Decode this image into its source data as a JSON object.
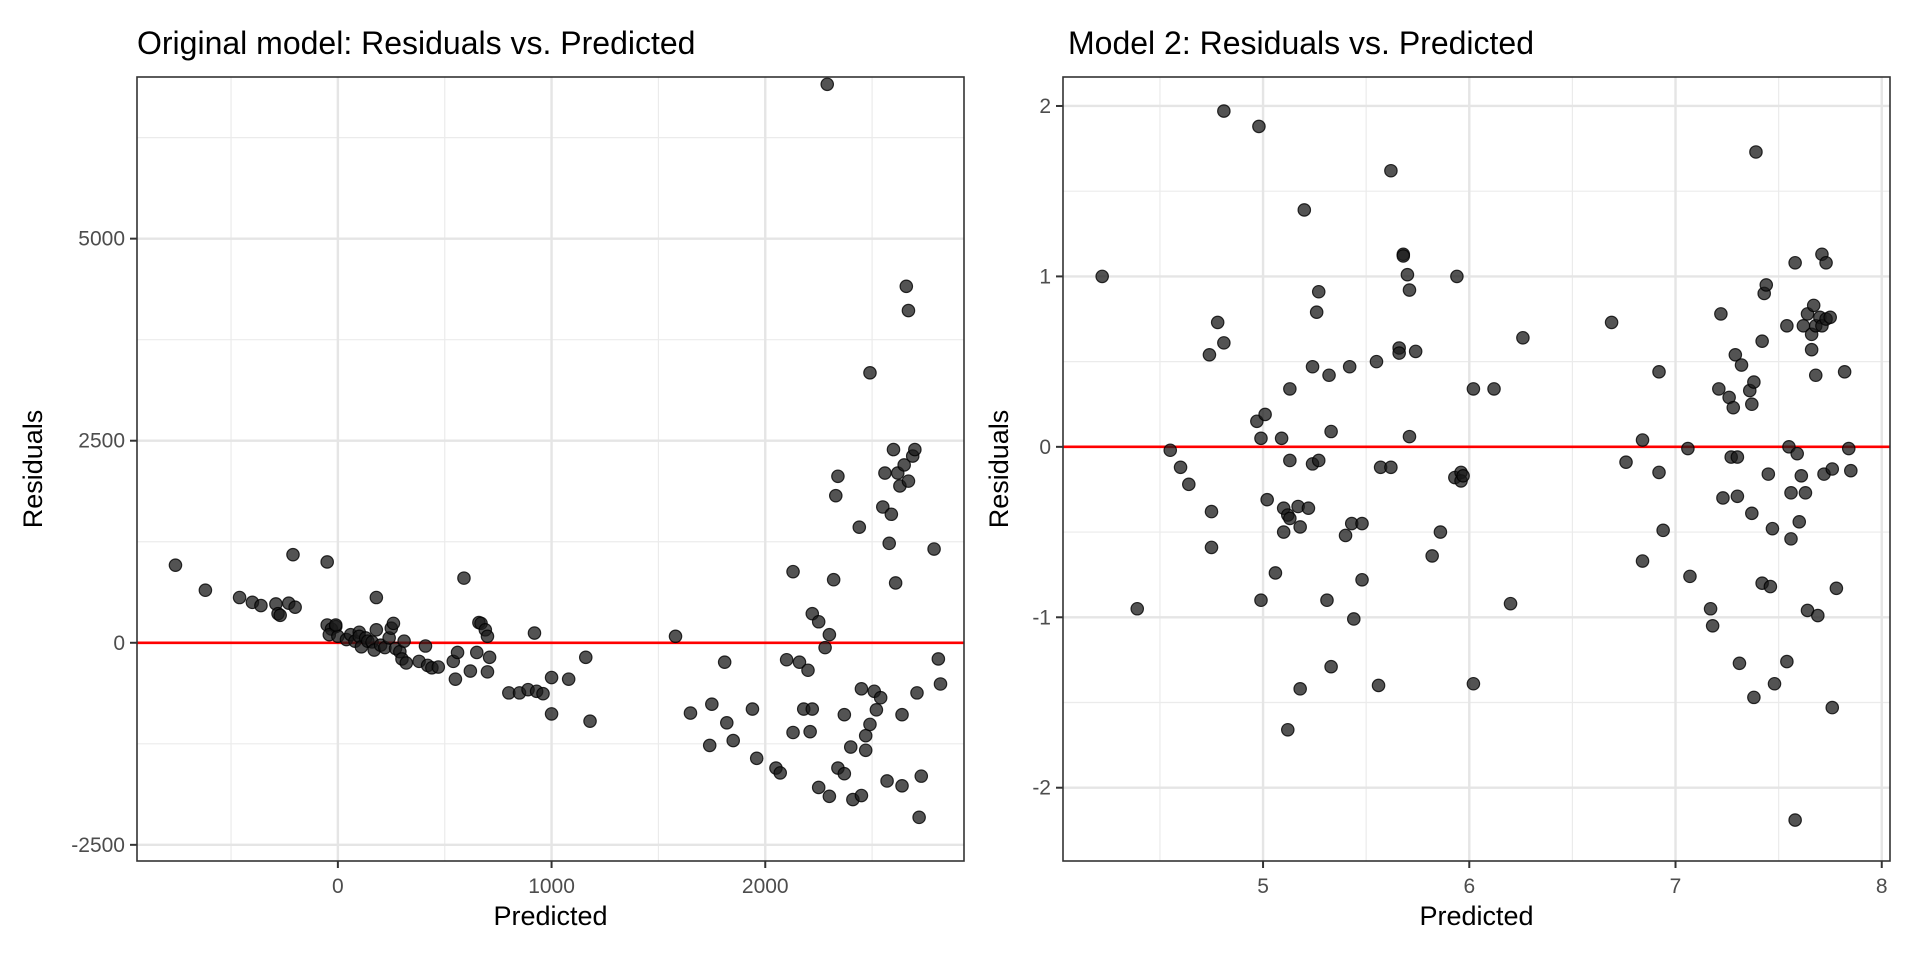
{
  "chart_data": [
    {
      "type": "scatter",
      "title": "Original model: Residuals vs. Predicted",
      "xlabel": "Predicted",
      "ylabel": "Residuals",
      "xlim": [
        -940,
        2930
      ],
      "ylim": [
        -2700,
        7000
      ],
      "xticks": [
        0,
        1000,
        2000
      ],
      "xtick_labels": [
        "0",
        "1000",
        "2000"
      ],
      "xminor": [
        -500,
        500,
        1500,
        2500
      ],
      "yticks": [
        -2500,
        0,
        2500,
        5000
      ],
      "ytick_labels": [
        "-2500",
        "0",
        "2500",
        "5000"
      ],
      "yminor": [
        -1250,
        1250,
        3750,
        6250
      ],
      "grid": true,
      "reference_line": {
        "y": 0,
        "color": "#ff0000"
      },
      "point_color": "#1a1a1a",
      "points": [
        [
          -760,
          960
        ],
        [
          -620,
          650
        ],
        [
          -460,
          560
        ],
        [
          -400,
          500
        ],
        [
          -360,
          460
        ],
        [
          -290,
          480
        ],
        [
          -280,
          360
        ],
        [
          -270,
          340
        ],
        [
          -230,
          490
        ],
        [
          -200,
          440
        ],
        [
          -210,
          1090
        ],
        [
          -50,
          1000
        ],
        [
          -50,
          220
        ],
        [
          -30,
          170
        ],
        [
          -10,
          200
        ],
        [
          -40,
          100
        ],
        [
          0,
          80
        ],
        [
          -10,
          220
        ],
        [
          40,
          40
        ],
        [
          60,
          100
        ],
        [
          80,
          20
        ],
        [
          100,
          130
        ],
        [
          100,
          80
        ],
        [
          110,
          -50
        ],
        [
          130,
          60
        ],
        [
          140,
          20
        ],
        [
          160,
          10
        ],
        [
          170,
          -90
        ],
        [
          180,
          560
        ],
        [
          180,
          160
        ],
        [
          200,
          -30
        ],
        [
          220,
          -60
        ],
        [
          240,
          60
        ],
        [
          250,
          180
        ],
        [
          260,
          240
        ],
        [
          270,
          -70
        ],
        [
          290,
          -110
        ],
        [
          300,
          -200
        ],
        [
          310,
          20
        ],
        [
          320,
          -250
        ],
        [
          380,
          -230
        ],
        [
          410,
          -40
        ],
        [
          420,
          -280
        ],
        [
          440,
          -310
        ],
        [
          470,
          -300
        ],
        [
          540,
          -230
        ],
        [
          550,
          -450
        ],
        [
          560,
          -120
        ],
        [
          590,
          800
        ],
        [
          620,
          -350
        ],
        [
          650,
          -120
        ],
        [
          660,
          250
        ],
        [
          670,
          240
        ],
        [
          690,
          160
        ],
        [
          700,
          80
        ],
        [
          700,
          -360
        ],
        [
          710,
          -180
        ],
        [
          800,
          -620
        ],
        [
          850,
          -620
        ],
        [
          890,
          -580
        ],
        [
          920,
          120
        ],
        [
          930,
          -600
        ],
        [
          960,
          -630
        ],
        [
          1000,
          -430
        ],
        [
          1000,
          -880
        ],
        [
          1080,
          -450
        ],
        [
          1160,
          -180
        ],
        [
          1180,
          -970
        ],
        [
          1580,
          80
        ],
        [
          1650,
          -870
        ],
        [
          1740,
          -1270
        ],
        [
          1750,
          -760
        ],
        [
          1810,
          -240
        ],
        [
          1820,
          -990
        ],
        [
          1850,
          -1210
        ],
        [
          1940,
          -820
        ],
        [
          1960,
          -1430
        ],
        [
          2050,
          -1550
        ],
        [
          2070,
          -1610
        ],
        [
          2100,
          -210
        ],
        [
          2130,
          880
        ],
        [
          2130,
          -1110
        ],
        [
          2160,
          -240
        ],
        [
          2180,
          -820
        ],
        [
          2200,
          -340
        ],
        [
          2210,
          -1100
        ],
        [
          2220,
          360
        ],
        [
          2220,
          -820
        ],
        [
          2250,
          -1790
        ],
        [
          2250,
          260
        ],
        [
          2280,
          -60
        ],
        [
          2300,
          100
        ],
        [
          2300,
          -1900
        ],
        [
          2320,
          780
        ],
        [
          2330,
          1820
        ],
        [
          2340,
          2060
        ],
        [
          2340,
          -1550
        ],
        [
          2370,
          -1620
        ],
        [
          2370,
          -890
        ],
        [
          2400,
          -1290
        ],
        [
          2410,
          -1940
        ],
        [
          2440,
          1430
        ],
        [
          2450,
          -570
        ],
        [
          2450,
          -1890
        ],
        [
          2470,
          -1150
        ],
        [
          2470,
          -1330
        ],
        [
          2490,
          -1010
        ],
        [
          2490,
          3340
        ],
        [
          2510,
          -600
        ],
        [
          2520,
          -830
        ],
        [
          2540,
          -680
        ],
        [
          2550,
          1680
        ],
        [
          2560,
          2100
        ],
        [
          2570,
          -1710
        ],
        [
          2580,
          1230
        ],
        [
          2590,
          1590
        ],
        [
          2600,
          2390
        ],
        [
          2610,
          740
        ],
        [
          2620,
          2100
        ],
        [
          2630,
          1940
        ],
        [
          2640,
          -1770
        ],
        [
          2640,
          -890
        ],
        [
          2650,
          2200
        ],
        [
          2660,
          4410
        ],
        [
          2670,
          4110
        ],
        [
          2670,
          2000
        ],
        [
          2690,
          2310
        ],
        [
          2700,
          2390
        ],
        [
          2710,
          -620
        ],
        [
          2720,
          -2160
        ],
        [
          2730,
          -1650
        ],
        [
          2790,
          1160
        ],
        [
          2810,
          -200
        ],
        [
          2820,
          -510
        ]
      ],
      "outlier": [
        2290,
        6910
      ]
    },
    {
      "type": "scatter",
      "title": "Model 2: Residuals vs. Predicted",
      "xlabel": "Predicted",
      "ylabel": "Residuals",
      "xlim": [
        4.03,
        8.04
      ],
      "ylim": [
        -2.43,
        2.17
      ],
      "xticks": [
        5,
        6,
        7,
        8
      ],
      "xtick_labels": [
        "5",
        "6",
        "7",
        "8"
      ],
      "xminor": [
        4.5,
        5.5,
        6.5,
        7.5
      ],
      "yticks": [
        -2,
        -1,
        0,
        1,
        2
      ],
      "ytick_labels": [
        "-2",
        "-1",
        "0",
        "1",
        "2"
      ],
      "yminor": [
        -1.5,
        -0.5,
        0.5,
        1.5
      ],
      "grid": true,
      "reference_line": {
        "y": 0,
        "color": "#ff0000"
      },
      "point_color": "#1a1a1a",
      "points": [
        [
          4.22,
          1.0
        ],
        [
          4.39,
          -0.95
        ],
        [
          4.55,
          -0.02
        ],
        [
          4.6,
          -0.12
        ],
        [
          4.64,
          -0.22
        ],
        [
          4.74,
          0.54
        ],
        [
          4.75,
          -0.38
        ],
        [
          4.75,
          -0.59
        ],
        [
          4.78,
          0.73
        ],
        [
          4.81,
          0.61
        ],
        [
          4.81,
          1.97
        ],
        [
          4.97,
          0.15
        ],
        [
          4.98,
          1.88
        ],
        [
          4.99,
          0.05
        ],
        [
          4.99,
          -0.9
        ],
        [
          5.01,
          0.19
        ],
        [
          5.02,
          -0.31
        ],
        [
          5.06,
          -0.74
        ],
        [
          5.09,
          0.05
        ],
        [
          5.1,
          -0.36
        ],
        [
          5.1,
          -0.5
        ],
        [
          5.12,
          -0.4
        ],
        [
          5.13,
          -0.42
        ],
        [
          5.12,
          -1.66
        ],
        [
          5.13,
          0.34
        ],
        [
          5.13,
          -0.08
        ],
        [
          5.17,
          -0.35
        ],
        [
          5.18,
          -0.47
        ],
        [
          5.18,
          -1.42
        ],
        [
          5.2,
          1.39
        ],
        [
          5.22,
          -0.36
        ],
        [
          5.24,
          -0.1
        ],
        [
          5.24,
          0.47
        ],
        [
          5.26,
          0.79
        ],
        [
          5.27,
          0.91
        ],
        [
          5.27,
          -0.08
        ],
        [
          5.31,
          -0.9
        ],
        [
          5.32,
          0.42
        ],
        [
          5.33,
          0.09
        ],
        [
          5.33,
          -1.29
        ],
        [
          5.4,
          -0.52
        ],
        [
          5.42,
          0.47
        ],
        [
          5.43,
          -0.45
        ],
        [
          5.44,
          -1.01
        ],
        [
          5.48,
          -0.45
        ],
        [
          5.48,
          -0.78
        ],
        [
          5.55,
          0.5
        ],
        [
          5.56,
          -1.4
        ],
        [
          5.57,
          -0.12
        ],
        [
          5.62,
          1.62
        ],
        [
          5.62,
          -0.12
        ],
        [
          5.66,
          0.58
        ],
        [
          5.66,
          0.55
        ],
        [
          5.68,
          1.13
        ],
        [
          5.68,
          1.12
        ],
        [
          5.7,
          1.01
        ],
        [
          5.71,
          0.92
        ],
        [
          5.71,
          0.06
        ],
        [
          5.74,
          0.56
        ],
        [
          5.82,
          -0.64
        ],
        [
          5.86,
          -0.5
        ],
        [
          5.93,
          -0.18
        ],
        [
          5.94,
          1.0
        ],
        [
          5.96,
          -0.15
        ],
        [
          5.96,
          -0.2
        ],
        [
          5.97,
          -0.17
        ],
        [
          6.02,
          0.34
        ],
        [
          6.02,
          -1.39
        ],
        [
          6.12,
          0.34
        ],
        [
          6.2,
          -0.92
        ],
        [
          6.26,
          0.64
        ],
        [
          6.69,
          0.73
        ],
        [
          6.76,
          -0.09
        ],
        [
          6.84,
          0.04
        ],
        [
          6.84,
          -0.67
        ],
        [
          6.92,
          0.44
        ],
        [
          6.92,
          -0.15
        ],
        [
          6.94,
          -0.49
        ],
        [
          7.06,
          -0.01
        ],
        [
          7.07,
          -0.76
        ],
        [
          7.17,
          -0.95
        ],
        [
          7.18,
          -1.05
        ],
        [
          7.21,
          0.34
        ],
        [
          7.22,
          0.78
        ],
        [
          7.23,
          -0.3
        ],
        [
          7.26,
          0.29
        ],
        [
          7.27,
          -0.06
        ],
        [
          7.28,
          0.23
        ],
        [
          7.29,
          0.54
        ],
        [
          7.3,
          -0.29
        ],
        [
          7.3,
          -0.06
        ],
        [
          7.31,
          -1.27
        ],
        [
          7.32,
          0.48
        ],
        [
          7.36,
          0.33
        ],
        [
          7.37,
          0.25
        ],
        [
          7.37,
          -0.39
        ],
        [
          7.38,
          -1.47
        ],
        [
          7.38,
          0.38
        ],
        [
          7.39,
          1.73
        ],
        [
          7.42,
          0.62
        ],
        [
          7.42,
          -0.8
        ],
        [
          7.43,
          0.9
        ],
        [
          7.44,
          0.95
        ],
        [
          7.45,
          -0.16
        ],
        [
          7.46,
          -0.82
        ],
        [
          7.47,
          -0.48
        ],
        [
          7.48,
          -1.39
        ],
        [
          7.54,
          0.71
        ],
        [
          7.54,
          -1.26
        ],
        [
          7.55,
          0.0
        ],
        [
          7.56,
          -0.27
        ],
        [
          7.56,
          -0.54
        ],
        [
          7.58,
          -2.19
        ],
        [
          7.58,
          1.08
        ],
        [
          7.59,
          -0.04
        ],
        [
          7.6,
          -0.44
        ],
        [
          7.61,
          -0.17
        ],
        [
          7.62,
          0.71
        ],
        [
          7.63,
          -0.27
        ],
        [
          7.64,
          0.78
        ],
        [
          7.64,
          -0.96
        ],
        [
          7.66,
          0.66
        ],
        [
          7.66,
          0.57
        ],
        [
          7.67,
          0.83
        ],
        [
          7.68,
          0.71
        ],
        [
          7.68,
          0.42
        ],
        [
          7.69,
          -0.99
        ],
        [
          7.7,
          0.76
        ],
        [
          7.71,
          1.13
        ],
        [
          7.71,
          0.71
        ],
        [
          7.72,
          -0.16
        ],
        [
          7.73,
          0.75
        ],
        [
          7.73,
          1.08
        ],
        [
          7.75,
          0.76
        ],
        [
          7.76,
          -1.53
        ],
        [
          7.76,
          -0.13
        ],
        [
          7.78,
          -0.83
        ],
        [
          7.82,
          0.44
        ],
        [
          7.84,
          -0.01
        ],
        [
          7.85,
          -0.14
        ]
      ]
    }
  ]
}
